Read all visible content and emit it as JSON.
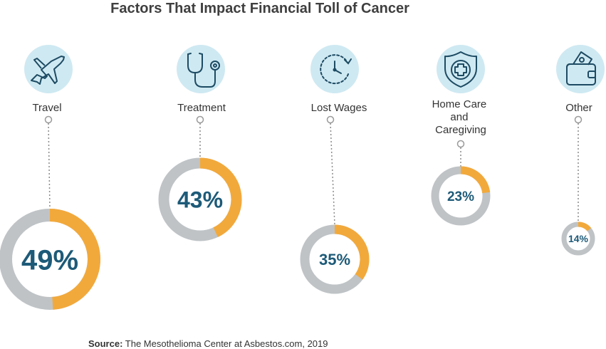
{
  "title": "Factors That Impact Financial Toll of Cancer",
  "source": {
    "label": "Source:",
    "text": "The Mesothelioma Center at Asbestos.com, 2019"
  },
  "colors": {
    "accent": "#f2a93b",
    "track": "#bfc3c6",
    "text": "#1d5a78",
    "icon_bg": "#cfe9f2",
    "icon_stroke": "#1d4b63"
  },
  "chart_data": {
    "type": "donut",
    "title": "Factors That Impact Financial Toll of Cancer",
    "unit": "%",
    "categories": [
      "Travel",
      "Treatment",
      "Lost Wages",
      "Home Care and Caregiving",
      "Other"
    ],
    "values": [
      49,
      43,
      35,
      23,
      14
    ],
    "labels": [
      "49%",
      "43%",
      "35%",
      "23%",
      "14%"
    ],
    "icons": [
      "airplane-icon",
      "stethoscope-icon",
      "clock-icon",
      "medical-shield-icon",
      "wallet-icon"
    ]
  }
}
